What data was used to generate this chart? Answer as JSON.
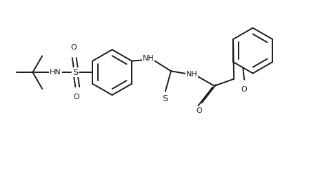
{
  "bg_color": "#ffffff",
  "line_color": "#1a1a1a",
  "lw": 1.4,
  "fs": 8.0,
  "figsize": [
    4.81,
    2.79
  ],
  "dpi": 100,
  "xlim": [
    -0.5,
    10.0
  ],
  "ylim": [
    -0.5,
    5.5
  ]
}
